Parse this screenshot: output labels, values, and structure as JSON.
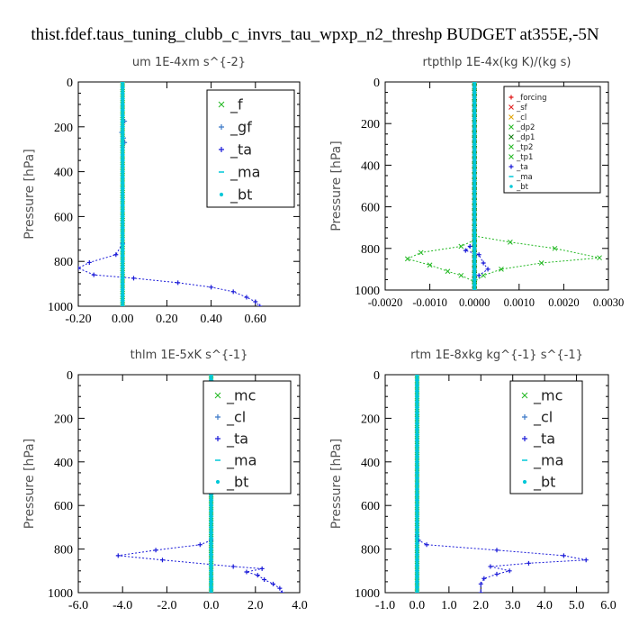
{
  "figure_title": "thist.fdef.taus_tuning_clubb_c_invrs_tau_wpxp_n2_threshp  BUDGET at355E,-5N",
  "colors": {
    "green": "#22b822",
    "blue": "#1a1ad8",
    "cyan": "#00c8d8",
    "red": "#e01818",
    "orange": "#e0a000",
    "dark_green": "#0a7a0a",
    "steel": "#3a78c8"
  },
  "chart_data": [
    {
      "type": "line",
      "title": "um   1E-4xm  s^{-2}",
      "ylabel": "Pressure [hPa]",
      "xlim": [
        -0.2,
        0.8
      ],
      "ylim": [
        1000,
        0
      ],
      "xticks": [
        "-0.20",
        "0.00",
        "0.20",
        "0.40",
        "0.60"
      ],
      "yticks": [
        "0",
        "200",
        "400",
        "600",
        "800",
        "1000"
      ],
      "legend_position": "top-right",
      "series": [
        {
          "name": "_f",
          "color": "#22b822",
          "marker": "x",
          "points": [
            [
              0,
              0
            ],
            [
              0,
              200
            ],
            [
              0,
              400
            ],
            [
              0,
              600
            ],
            [
              0,
              800
            ],
            [
              0,
              1000
            ]
          ]
        },
        {
          "name": "_gf",
          "color": "#3a78c8",
          "marker": "+",
          "points": [
            [
              0.01,
              175
            ],
            [
              0.0,
              200
            ],
            [
              -0.005,
              225
            ],
            [
              0.005,
              250
            ],
            [
              0.01,
              270
            ],
            [
              0,
              290
            ]
          ]
        },
        {
          "name": "_ta",
          "color": "#1a1ad8",
          "marker": "+",
          "points": [
            [
              0,
              720
            ],
            [
              -0.03,
              770
            ],
            [
              -0.15,
              805
            ],
            [
              -0.2,
              830
            ],
            [
              -0.13,
              860
            ],
            [
              0.05,
              875
            ],
            [
              0.25,
              895
            ],
            [
              0.4,
              915
            ],
            [
              0.5,
              935
            ],
            [
              0.56,
              960
            ],
            [
              0.6,
              980
            ],
            [
              0.62,
              1000
            ]
          ]
        },
        {
          "name": "_ma",
          "color": "#00c8d8",
          "marker": "-",
          "points": [
            [
              0,
              0
            ],
            [
              0,
              500
            ],
            [
              0,
              1000
            ]
          ]
        },
        {
          "name": "_bt",
          "color": "#00c8d8",
          "marker": "o",
          "points": [
            [
              0,
              0
            ],
            [
              0,
              250
            ],
            [
              0,
              500
            ],
            [
              0,
              750
            ],
            [
              0,
              1000
            ]
          ]
        }
      ]
    },
    {
      "type": "line",
      "title": "rtpthlp   1E-4x(kg K)/(kg s)",
      "ylabel": "Pressure [hPa]",
      "xlim": [
        -0.002,
        0.003
      ],
      "ylim": [
        1000,
        0
      ],
      "xticks": [
        "-0.0020",
        "-0.0010",
        "0.0000",
        "0.0010",
        "0.0020",
        "0.0030"
      ],
      "yticks": [
        "0",
        "200",
        "400",
        "600",
        "800",
        "1000"
      ],
      "legend_position": "top-right",
      "series": [
        {
          "name": "_forcing",
          "color": "#e01818",
          "marker": "+",
          "points": [
            [
              0,
              0
            ],
            [
              0,
              500
            ],
            [
              0,
              1000
            ]
          ]
        },
        {
          "name": "_sf",
          "color": "#e01818",
          "marker": "x",
          "points": [
            [
              0,
              0
            ],
            [
              0,
              1000
            ]
          ]
        },
        {
          "name": "_cl",
          "color": "#e0a000",
          "marker": "x",
          "points": [
            [
              0,
              0
            ],
            [
              0,
              1000
            ]
          ]
        },
        {
          "name": "_dp2",
          "color": "#22b822",
          "marker": "x",
          "points": [
            [
              0,
              0
            ],
            [
              0,
              1000
            ]
          ]
        },
        {
          "name": "_dp1",
          "color": "#0a7a0a",
          "marker": "x",
          "points": [
            [
              0,
              0
            ],
            [
              0,
              1000
            ]
          ]
        },
        {
          "name": "_tp2",
          "color": "#22b822",
          "marker": "x",
          "points": [
            [
              0,
              760
            ],
            [
              -0.0003,
              790
            ],
            [
              -0.0012,
              820
            ],
            [
              -0.0015,
              850
            ],
            [
              -0.001,
              880
            ],
            [
              -0.0006,
              910
            ],
            [
              -0.0003,
              930
            ],
            [
              0,
              960
            ]
          ]
        },
        {
          "name": "_tp1",
          "color": "#22b822",
          "marker": "x",
          "points": [
            [
              0,
              740
            ],
            [
              0.0008,
              770
            ],
            [
              0.0018,
              800
            ],
            [
              0.0028,
              845
            ],
            [
              0.0015,
              870
            ],
            [
              0.0006,
              900
            ],
            [
              0.0002,
              930
            ],
            [
              0,
              960
            ]
          ]
        },
        {
          "name": "_ta",
          "color": "#1a1ad8",
          "marker": "+",
          "points": [
            [
              -0.0001,
              790
            ],
            [
              -0.0002,
              810
            ],
            [
              0.0001,
              830
            ],
            [
              0.0002,
              870
            ],
            [
              0.0003,
              900
            ],
            [
              0.0001,
              930
            ]
          ]
        },
        {
          "name": "_ma",
          "color": "#00c8d8",
          "marker": "-",
          "points": [
            [
              0,
              0
            ],
            [
              0,
              1000
            ]
          ]
        },
        {
          "name": "_bt",
          "color": "#00c8d8",
          "marker": "o",
          "points": [
            [
              0,
              0
            ],
            [
              0,
              1000
            ]
          ]
        }
      ]
    },
    {
      "type": "line",
      "title": "thlm   1E-5xK  s^{-1}",
      "ylabel": "Pressure [hPa]",
      "xlim": [
        -6.0,
        4.0
      ],
      "ylim": [
        1000,
        0
      ],
      "xticks": [
        "-6.0",
        "-4.0",
        "-2.0",
        "0.0",
        "2.0",
        "4.0"
      ],
      "yticks": [
        "0",
        "200",
        "400",
        "600",
        "800",
        "1000"
      ],
      "legend_position": "top-right",
      "series": [
        {
          "name": "_mc",
          "color": "#22b822",
          "marker": "x",
          "points": [
            [
              0,
              0
            ],
            [
              0,
              250
            ],
            [
              0,
              500
            ],
            [
              0,
              750
            ],
            [
              0,
              1000
            ]
          ]
        },
        {
          "name": "_cl",
          "color": "#3a78c8",
          "marker": "+",
          "points": [
            [
              0,
              0
            ],
            [
              0,
              1000
            ]
          ]
        },
        {
          "name": "_ta",
          "color": "#1a1ad8",
          "marker": "+",
          "points": [
            [
              0,
              760
            ],
            [
              -0.5,
              780
            ],
            [
              -2.5,
              805
            ],
            [
              -4.2,
              830
            ],
            [
              -2.2,
              850
            ],
            [
              1.0,
              880
            ],
            [
              2.3,
              890
            ],
            [
              1.6,
              905
            ],
            [
              2.1,
              920
            ],
            [
              2.4,
              940
            ],
            [
              2.8,
              960
            ],
            [
              3.1,
              980
            ],
            [
              3.2,
              1000
            ]
          ]
        },
        {
          "name": "_ma",
          "color": "#00c8d8",
          "marker": "-",
          "points": [
            [
              0,
              0
            ],
            [
              0,
              1000
            ]
          ]
        },
        {
          "name": "_bt",
          "color": "#00c8d8",
          "marker": "o",
          "points": [
            [
              0,
              0
            ],
            [
              0,
              250
            ],
            [
              0,
              500
            ],
            [
              0,
              750
            ],
            [
              0,
              1000
            ]
          ]
        }
      ]
    },
    {
      "type": "line",
      "title": "rtm   1E-8xkg  kg^{-1} s^{-1}",
      "ylabel": "Pressure [hPa]",
      "xlim": [
        -1.0,
        6.0
      ],
      "ylim": [
        1000,
        0
      ],
      "xticks": [
        "-1.0",
        "0.0",
        "1.0",
        "2.0",
        "3.0",
        "4.0",
        "5.0",
        "6.0"
      ],
      "yticks": [
        "0",
        "200",
        "400",
        "600",
        "800",
        "1000"
      ],
      "legend_position": "top-right",
      "series": [
        {
          "name": "_mc",
          "color": "#22b822",
          "marker": "x",
          "points": [
            [
              0,
              0
            ],
            [
              0,
              250
            ],
            [
              0,
              500
            ],
            [
              0,
              750
            ],
            [
              0,
              1000
            ]
          ]
        },
        {
          "name": "_cl",
          "color": "#3a78c8",
          "marker": "+",
          "points": [
            [
              0,
              0
            ],
            [
              0,
              1000
            ]
          ]
        },
        {
          "name": "_ta",
          "color": "#1a1ad8",
          "marker": "+",
          "points": [
            [
              0,
              740
            ],
            [
              0.05,
              760
            ],
            [
              0.3,
              780
            ],
            [
              2.5,
              805
            ],
            [
              4.6,
              830
            ],
            [
              5.3,
              850
            ],
            [
              3.5,
              865
            ],
            [
              2.3,
              880
            ],
            [
              2.9,
              900
            ],
            [
              2.5,
              915
            ],
            [
              2.1,
              935
            ],
            [
              2.0,
              960
            ],
            [
              2.0,
              1000
            ]
          ]
        },
        {
          "name": "_ma",
          "color": "#00c8d8",
          "marker": "-",
          "points": [
            [
              0,
              0
            ],
            [
              0,
              1000
            ]
          ]
        },
        {
          "name": "_bt",
          "color": "#00c8d8",
          "marker": "o",
          "points": [
            [
              0,
              0
            ],
            [
              0,
              250
            ],
            [
              0,
              500
            ],
            [
              0,
              750
            ],
            [
              0,
              1000
            ]
          ]
        }
      ]
    }
  ]
}
